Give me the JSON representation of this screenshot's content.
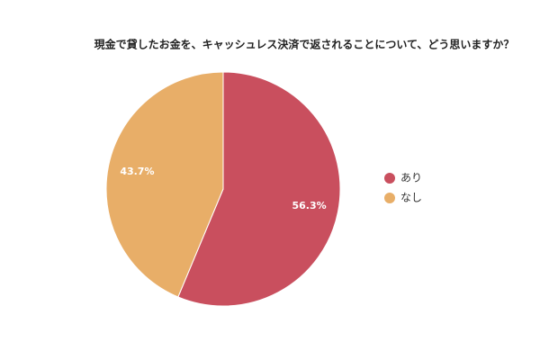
{
  "chart_data": {
    "type": "pie",
    "title": "現金で貸したお金を、キャッシュレス決済で返されることについて、どう思いますか？",
    "categories": [
      "あり",
      "なし"
    ],
    "values": [
      56.3,
      43.7
    ],
    "value_labels": [
      "56.3%",
      "43.7%"
    ],
    "colors": [
      "#c94f5e",
      "#e8ae68"
    ],
    "legend": "right"
  }
}
